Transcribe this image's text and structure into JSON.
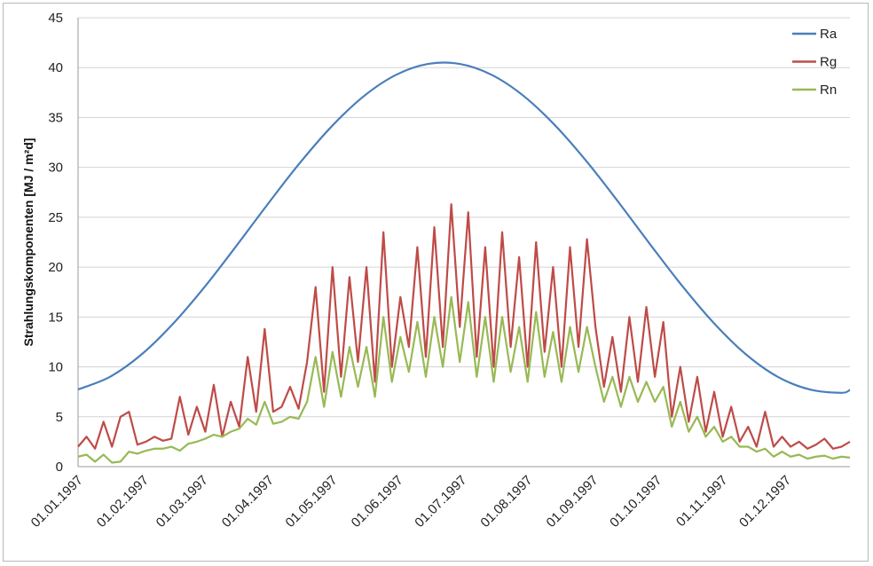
{
  "chart_data": {
    "type": "line",
    "title": "",
    "xlabel": "",
    "ylabel": "Strahlungskomponenten  [MJ / m²d]",
    "ylim": [
      0,
      45
    ],
    "yticks": [
      0,
      5,
      10,
      15,
      20,
      25,
      30,
      35,
      40,
      45
    ],
    "xlim": [
      "1997-01-01",
      "1997-12-31"
    ],
    "xticks": [
      {
        "date": "1997-01-01",
        "label": "01.01.1997"
      },
      {
        "date": "1997-02-01",
        "label": "01.02.1997"
      },
      {
        "date": "1997-03-01",
        "label": "01.03.1997"
      },
      {
        "date": "1997-04-01",
        "label": "01.04.1997"
      },
      {
        "date": "1997-05-01",
        "label": "01.05.1997"
      },
      {
        "date": "1997-06-01",
        "label": "01.06.1997"
      },
      {
        "date": "1997-07-01",
        "label": "01.07.1997"
      },
      {
        "date": "1997-08-01",
        "label": "01.08.1997"
      },
      {
        "date": "1997-09-01",
        "label": "01.09.1997"
      },
      {
        "date": "1997-10-01",
        "label": "01.10.1997"
      },
      {
        "date": "1997-11-01",
        "label": "01.11.1997"
      },
      {
        "date": "1997-12-01",
        "label": "01.12.1997"
      }
    ],
    "grid": true,
    "legend_position": "top-right",
    "series": [
      {
        "name": "Ra",
        "color": "#4a7ebb",
        "x": [
          "1997-01-01",
          "1997-01-16",
          "1997-01-31",
          "1997-02-15",
          "1997-03-02",
          "1997-03-17",
          "1997-04-01",
          "1997-04-16",
          "1997-05-01",
          "1997-05-16",
          "1997-05-31",
          "1997-06-15",
          "1997-06-30",
          "1997-07-15",
          "1997-07-30",
          "1997-08-14",
          "1997-08-29",
          "1997-09-13",
          "1997-09-28",
          "1997-10-13",
          "1997-10-28",
          "1997-11-12",
          "1997-11-27",
          "1997-12-12",
          "1997-12-27",
          "1997-12-31"
        ],
        "y": [
          7.74,
          9.0,
          11.26,
          14.37,
          18.1,
          22.23,
          26.47,
          30.55,
          34.2,
          37.18,
          39.28,
          40.37,
          40.37,
          39.28,
          37.18,
          34.2,
          30.55,
          26.47,
          22.22,
          18.09,
          14.35,
          11.25,
          9.0,
          7.74,
          7.4,
          7.7
        ]
      },
      {
        "name": "Rg",
        "color": "#be4b48",
        "x": [
          "1997-01-01",
          "1997-01-05",
          "1997-01-09",
          "1997-01-13",
          "1997-01-17",
          "1997-01-21",
          "1997-01-25",
          "1997-01-29",
          "1997-02-02",
          "1997-02-06",
          "1997-02-10",
          "1997-02-14",
          "1997-02-18",
          "1997-02-22",
          "1997-02-26",
          "1997-03-02",
          "1997-03-06",
          "1997-03-10",
          "1997-03-14",
          "1997-03-18",
          "1997-03-22",
          "1997-03-26",
          "1997-03-30",
          "1997-04-03",
          "1997-04-07",
          "1997-04-11",
          "1997-04-15",
          "1997-04-19",
          "1997-04-23",
          "1997-04-27",
          "1997-05-01",
          "1997-05-05",
          "1997-05-09",
          "1997-05-13",
          "1997-05-17",
          "1997-05-21",
          "1997-05-25",
          "1997-05-29",
          "1997-06-02",
          "1997-06-06",
          "1997-06-10",
          "1997-06-14",
          "1997-06-18",
          "1997-06-22",
          "1997-06-26",
          "1997-06-30",
          "1997-07-04",
          "1997-07-08",
          "1997-07-12",
          "1997-07-16",
          "1997-07-20",
          "1997-07-24",
          "1997-07-28",
          "1997-08-01",
          "1997-08-05",
          "1997-08-09",
          "1997-08-13",
          "1997-08-17",
          "1997-08-21",
          "1997-08-25",
          "1997-08-29",
          "1997-09-02",
          "1997-09-06",
          "1997-09-10",
          "1997-09-14",
          "1997-09-18",
          "1997-09-22",
          "1997-09-26",
          "1997-09-30",
          "1997-10-04",
          "1997-10-08",
          "1997-10-12",
          "1997-10-16",
          "1997-10-20",
          "1997-10-24",
          "1997-10-28",
          "1997-11-01",
          "1997-11-05",
          "1997-11-09",
          "1997-11-13",
          "1997-11-17",
          "1997-11-21",
          "1997-11-25",
          "1997-11-29",
          "1997-12-03",
          "1997-12-07",
          "1997-12-11",
          "1997-12-15",
          "1997-12-19",
          "1997-12-23",
          "1997-12-27",
          "1997-12-31"
        ],
        "y": [
          2.0,
          3.0,
          1.8,
          4.5,
          2.0,
          5.0,
          5.5,
          2.2,
          2.5,
          3.0,
          2.6,
          2.8,
          7.0,
          3.2,
          6.0,
          3.5,
          8.2,
          3.0,
          6.5,
          4.0,
          11.0,
          5.5,
          13.8,
          5.5,
          6.0,
          8.0,
          5.8,
          10.5,
          18.0,
          7.5,
          20.0,
          9.0,
          19.0,
          10.5,
          20.0,
          8.5,
          23.5,
          10.0,
          17.0,
          12.0,
          22.0,
          11.0,
          24.0,
          12.0,
          26.3,
          14.0,
          25.5,
          11.0,
          22.0,
          10.0,
          23.5,
          12.0,
          21.0,
          10.0,
          22.5,
          11.5,
          20.0,
          10.0,
          22.0,
          12.0,
          22.8,
          14.0,
          8.0,
          13.0,
          7.5,
          15.0,
          8.5,
          16.0,
          9.0,
          14.5,
          5.0,
          10.0,
          4.5,
          9.0,
          3.5,
          7.5,
          3.0,
          6.0,
          2.5,
          4.0,
          2.0,
          5.5,
          2.0,
          3.0,
          2.0,
          2.5,
          1.8,
          2.2,
          2.8,
          1.8,
          2.0,
          2.5
        ]
      },
      {
        "name": "Rn",
        "color": "#98b954",
        "x": [
          "1997-01-01",
          "1997-01-05",
          "1997-01-09",
          "1997-01-13",
          "1997-01-17",
          "1997-01-21",
          "1997-01-25",
          "1997-01-29",
          "1997-02-02",
          "1997-02-06",
          "1997-02-10",
          "1997-02-14",
          "1997-02-18",
          "1997-02-22",
          "1997-02-26",
          "1997-03-02",
          "1997-03-06",
          "1997-03-10",
          "1997-03-14",
          "1997-03-18",
          "1997-03-22",
          "1997-03-26",
          "1997-03-30",
          "1997-04-03",
          "1997-04-07",
          "1997-04-11",
          "1997-04-15",
          "1997-04-19",
          "1997-04-23",
          "1997-04-27",
          "1997-05-01",
          "1997-05-05",
          "1997-05-09",
          "1997-05-13",
          "1997-05-17",
          "1997-05-21",
          "1997-05-25",
          "1997-05-29",
          "1997-06-02",
          "1997-06-06",
          "1997-06-10",
          "1997-06-14",
          "1997-06-18",
          "1997-06-22",
          "1997-06-26",
          "1997-06-30",
          "1997-07-04",
          "1997-07-08",
          "1997-07-12",
          "1997-07-16",
          "1997-07-20",
          "1997-07-24",
          "1997-07-28",
          "1997-08-01",
          "1997-08-05",
          "1997-08-09",
          "1997-08-13",
          "1997-08-17",
          "1997-08-21",
          "1997-08-25",
          "1997-08-29",
          "1997-09-02",
          "1997-09-06",
          "1997-09-10",
          "1997-09-14",
          "1997-09-18",
          "1997-09-22",
          "1997-09-26",
          "1997-09-30",
          "1997-10-04",
          "1997-10-08",
          "1997-10-12",
          "1997-10-16",
          "1997-10-20",
          "1997-10-24",
          "1997-10-28",
          "1997-11-01",
          "1997-11-05",
          "1997-11-09",
          "1997-11-13",
          "1997-11-17",
          "1997-11-21",
          "1997-11-25",
          "1997-11-29",
          "1997-12-03",
          "1997-12-07",
          "1997-12-11",
          "1997-12-15",
          "1997-12-19",
          "1997-12-23",
          "1997-12-27",
          "1997-12-31"
        ],
        "y": [
          1.0,
          1.2,
          0.5,
          1.2,
          0.4,
          0.5,
          1.5,
          1.3,
          1.6,
          1.8,
          1.8,
          2.0,
          1.6,
          2.3,
          2.5,
          2.8,
          3.2,
          3.0,
          3.5,
          3.8,
          4.8,
          4.2,
          6.5,
          4.3,
          4.5,
          5.0,
          4.8,
          6.5,
          11.0,
          6.0,
          11.5,
          7.0,
          12.0,
          8.0,
          12.0,
          7.0,
          15.0,
          8.5,
          13.0,
          9.5,
          14.5,
          9.0,
          15.0,
          10.0,
          17.0,
          10.5,
          16.5,
          9.0,
          15.0,
          8.5,
          15.0,
          9.5,
          14.0,
          8.5,
          15.5,
          9.0,
          13.5,
          8.5,
          14.0,
          9.5,
          14.0,
          10.0,
          6.5,
          9.0,
          6.0,
          9.0,
          6.5,
          8.5,
          6.5,
          8.0,
          4.0,
          6.5,
          3.5,
          5.0,
          3.0,
          4.0,
          2.5,
          3.0,
          2.0,
          2.0,
          1.5,
          1.8,
          1.0,
          1.5,
          1.0,
          1.2,
          0.8,
          1.0,
          1.1,
          0.8,
          1.0,
          0.9
        ]
      }
    ]
  }
}
